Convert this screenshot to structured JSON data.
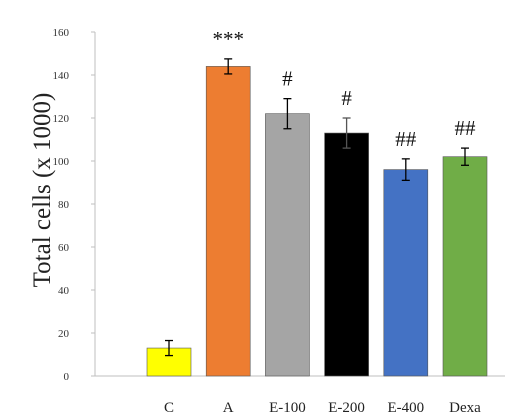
{
  "chart_data": {
    "type": "bar",
    "title": "",
    "xlabel": "",
    "ylabel": "Total cells (x 1000)",
    "ylim": [
      0,
      160
    ],
    "yticks": [
      0,
      20,
      40,
      60,
      80,
      100,
      120,
      140,
      160
    ],
    "grid": false,
    "categories": [
      "C",
      "A",
      "E-100",
      "E-200",
      "E-400",
      "Dexa"
    ],
    "values": [
      13,
      144,
      122,
      113,
      96,
      102
    ],
    "errors": [
      3.5,
      3.5,
      7,
      7,
      5,
      4
    ],
    "significance": [
      "",
      "***",
      "#",
      "#",
      "##",
      "##"
    ],
    "colors": [
      "#ffff00",
      "#ed7d31",
      "#a5a5a5",
      "#000000",
      "#4472c4",
      "#70ad47"
    ]
  }
}
